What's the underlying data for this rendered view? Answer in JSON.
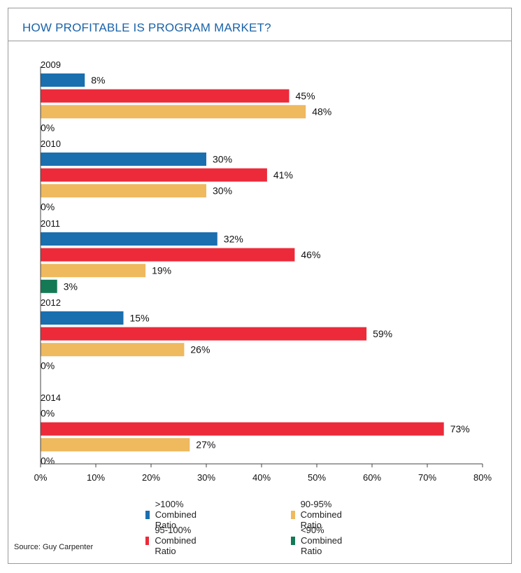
{
  "header": {
    "title": "HOW PROFITABLE IS PROGRAM MARKET?"
  },
  "source": "Source: Guy Carpenter",
  "chart_data": {
    "type": "bar",
    "orientation": "horizontal",
    "title": "HOW PROFITABLE IS PROGRAM MARKET?",
    "xlabel": "",
    "ylabel": "",
    "xlim": [
      0,
      80
    ],
    "x_ticks": [
      "0%",
      "10%",
      "20%",
      "30%",
      "40%",
      "50%",
      "60%",
      "70%",
      "80%"
    ],
    "grid": false,
    "legend_position": "bottom",
    "value_suffix": "%",
    "categories": [
      "2009",
      "2010",
      "2011",
      "2012",
      "2014"
    ],
    "series": [
      {
        "name": ">100% Combined Ratio",
        "color": "#1a6faf",
        "values": [
          8,
          30,
          32,
          15,
          0
        ]
      },
      {
        "name": "95-100% Combined Ratio",
        "color": "#ec2a3a",
        "values": [
          45,
          41,
          46,
          59,
          73
        ]
      },
      {
        "name": "90-95% Combined Ratio",
        "color": "#efb95e",
        "values": [
          48,
          30,
          19,
          26,
          27
        ]
      },
      {
        "name": "<90% Combined Ratio",
        "color": "#137a55",
        "values": [
          0,
          0,
          3,
          0,
          0
        ]
      }
    ],
    "bar_order": [
      0,
      1,
      2,
      3
    ],
    "legend_order": [
      0,
      2,
      1,
      3
    ]
  }
}
